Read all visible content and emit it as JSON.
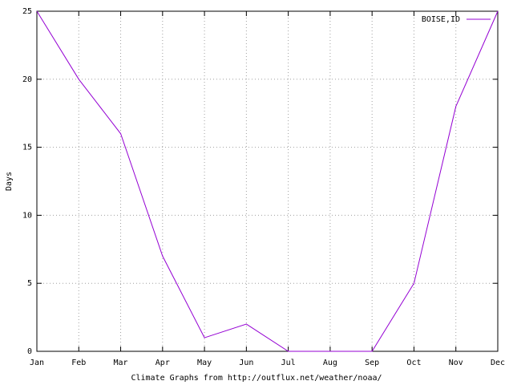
{
  "chart_data": {
    "type": "line",
    "x_label": "Climate Graphs from http://outflux.net/weather/noaa/",
    "y_label": "Days",
    "categories": [
      "Jan",
      "Feb",
      "Mar",
      "Apr",
      "May",
      "Jun",
      "Jul",
      "Aug",
      "Sep",
      "Oct",
      "Nov",
      "Dec"
    ],
    "series": [
      {
        "name": "BOISE,ID",
        "color": "#9400d3",
        "values": [
          25,
          20,
          16,
          7,
          1,
          2,
          0,
          0,
          0,
          5,
          18,
          25
        ]
      }
    ],
    "ylim": [
      0,
      25
    ],
    "yticks": [
      0,
      5,
      10,
      15,
      20,
      25
    ],
    "grid": true,
    "legend": "top-right"
  }
}
